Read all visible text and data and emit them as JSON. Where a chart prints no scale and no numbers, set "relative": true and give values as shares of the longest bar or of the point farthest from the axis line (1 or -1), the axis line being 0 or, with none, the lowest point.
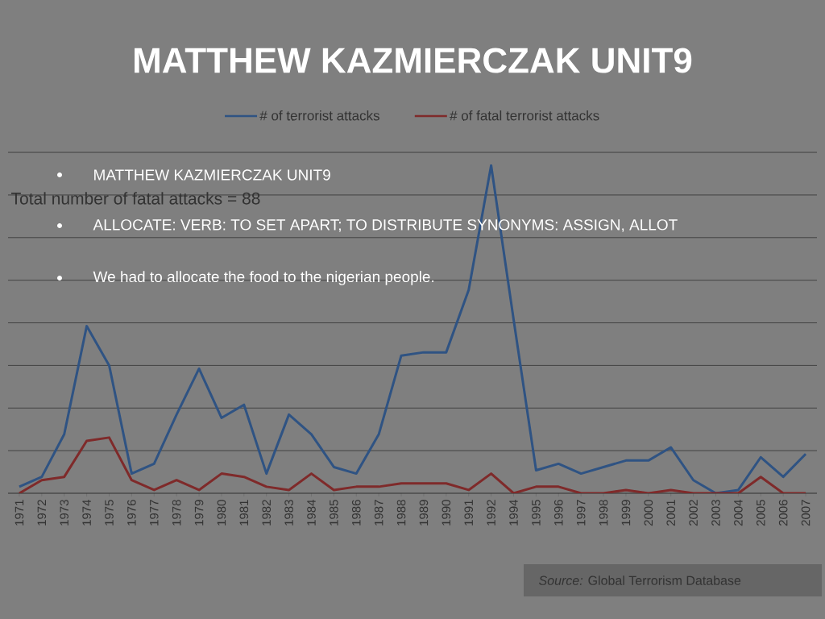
{
  "chart_data": {
    "type": "line",
    "title": "MATTHEW KAZMIERCZAK UNIT9",
    "annotations": [
      "MATTHEW KAZMIERCZAK UNIT9",
      "ALLOCATE: VERB: TO SET APART; TO DISTRIBUTE SYNONYMS: ASSIGN, ALLOT",
      "We had to allocate the food to the nigerian people.",
      "Total number of fatal attacks = 88",
      "*Source:* Global Terrorism Database"
    ],
    "categories": [
      "1971",
      "1972",
      "1973",
      "1974",
      "1975",
      "1976",
      "1977",
      "1978",
      "1979",
      "1980",
      "1981",
      "1982",
      "1983",
      "1984",
      "1985",
      "1986",
      "1987",
      "1988",
      "1989",
      "1990",
      "1991",
      "1992",
      "1994",
      "1995",
      "1996",
      "1997",
      "1998",
      "1999",
      "2000",
      "2001",
      "2002",
      "2003",
      "2004",
      "2005",
      "2006",
      "2007"
    ],
    "relative": true,
    "grid": "y",
    "legend": "top",
    "line_style": "solid",
    "series": [
      {
        "name": "# of terrorist attacks",
        "color": "#2f5383",
        "values": [
          0.02,
          0.05,
          0.18,
          0.51,
          0.39,
          0.06,
          0.09,
          0.24,
          0.38,
          0.23,
          0.27,
          0.06,
          0.24,
          0.18,
          0.08,
          0.06,
          0.18,
          0.42,
          0.43,
          0.43,
          0.62,
          1,
          0.53,
          0.07,
          0.09,
          0.06,
          0.08,
          0.1,
          0.1,
          0.14,
          0.04,
          0,
          0.01,
          0.11,
          0.05,
          0.12
        ]
      },
      {
        "name": "# of fatal terrorist attacks",
        "color": "#7f2a2a",
        "values": [
          0,
          0.04,
          0.05,
          0.16,
          0.17,
          0.04,
          0.01,
          0.04,
          0.01,
          0.06,
          0.05,
          0.02,
          0.01,
          0.06,
          0.01,
          0.02,
          0.02,
          0.03,
          0.03,
          0.03,
          0.01,
          0.06,
          0,
          0.02,
          0.02,
          0,
          0,
          0.01,
          0,
          0.01,
          0,
          0,
          0,
          0.05,
          0,
          0
        ]
      }
    ]
  }
}
